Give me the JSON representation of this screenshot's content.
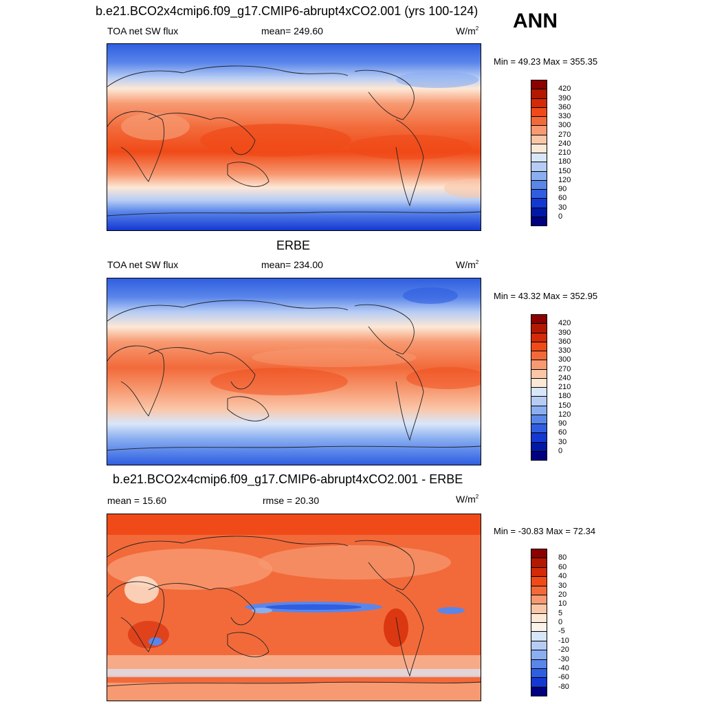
{
  "season": "ANN",
  "units_base": "W/m",
  "units_exp": "2",
  "panels": [
    {
      "title": "b.e21.BCO2x4cmip6.f09_g17.CMIP6-abrupt4xCO2.001 (yrs 100-124)",
      "left_label": "TOA net SW flux",
      "center_label": "mean= 249.60",
      "minmax": "Min =  49.23 Max = 355.35",
      "ticks": [
        "420",
        "390",
        "360",
        "330",
        "300",
        "270",
        "240",
        "210",
        "180",
        "150",
        "120",
        "90",
        "60",
        "30",
        "0"
      ],
      "colors": [
        "#8b0000",
        "#b31800",
        "#d42a08",
        "#f04a18",
        "#f26a3a",
        "#f79a72",
        "#fac6a8",
        "#fde8d6",
        "#d8e6fa",
        "#b6ccf5",
        "#8aaef0",
        "#5a86ea",
        "#2f5ee0",
        "#1438d2",
        "#0018a8",
        "#000080"
      ]
    },
    {
      "title": "ERBE",
      "left_label": "TOA net SW flux",
      "center_label": "mean= 234.00",
      "minmax": "Min =  43.32 Max = 352.95",
      "ticks": [
        "420",
        "390",
        "360",
        "330",
        "300",
        "270",
        "240",
        "210",
        "180",
        "150",
        "120",
        "90",
        "60",
        "30",
        "0"
      ],
      "colors": [
        "#8b0000",
        "#b31800",
        "#d42a08",
        "#f04a18",
        "#f26a3a",
        "#f79a72",
        "#fac6a8",
        "#fde8d6",
        "#d8e6fa",
        "#b6ccf5",
        "#8aaef0",
        "#5a86ea",
        "#2f5ee0",
        "#1438d2",
        "#0018a8",
        "#000080"
      ]
    },
    {
      "title": "b.e21.BCO2x4cmip6.f09_g17.CMIP6-abrupt4xCO2.001 - ERBE",
      "left_label": "mean =  15.60",
      "center_label": "rmse =  20.30",
      "minmax": "Min = -30.83 Max =  72.34",
      "ticks": [
        "80",
        "60",
        "40",
        "30",
        "20",
        "10",
        "5",
        "0",
        "-5",
        "-10",
        "-20",
        "-30",
        "-40",
        "-60",
        "-80"
      ],
      "colors": [
        "#8b0000",
        "#b31800",
        "#d42a08",
        "#f04a18",
        "#f26a3a",
        "#f79a72",
        "#fac6a8",
        "#fde8d6",
        "#fbf2ea",
        "#d8e6fa",
        "#b6ccf5",
        "#8aaef0",
        "#5a86ea",
        "#2f5ee0",
        "#1438d2",
        "#000080"
      ]
    }
  ]
}
